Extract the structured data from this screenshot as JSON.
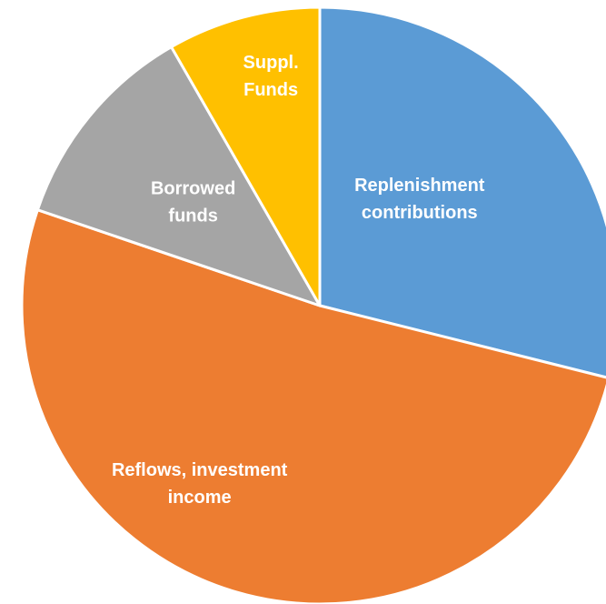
{
  "chart_data": {
    "type": "pie",
    "title": "",
    "start_angle_deg": 0,
    "direction": "clockwise",
    "slices": [
      {
        "label_lines": [
          "Replenishment",
          "contributions"
        ],
        "value": 28.9,
        "color": "#5B9BD5"
      },
      {
        "label_lines": [
          "Reflows, investment",
          "income"
        ],
        "value": 51.3,
        "color": "#ED7D31"
      },
      {
        "label_lines": [
          "Borrowed",
          "funds"
        ],
        "value": 11.5,
        "color": "#A5A5A5"
      },
      {
        "label_lines": [
          "Suppl.",
          "Funds"
        ],
        "value": 8.3,
        "color": "#FFC000"
      }
    ]
  }
}
